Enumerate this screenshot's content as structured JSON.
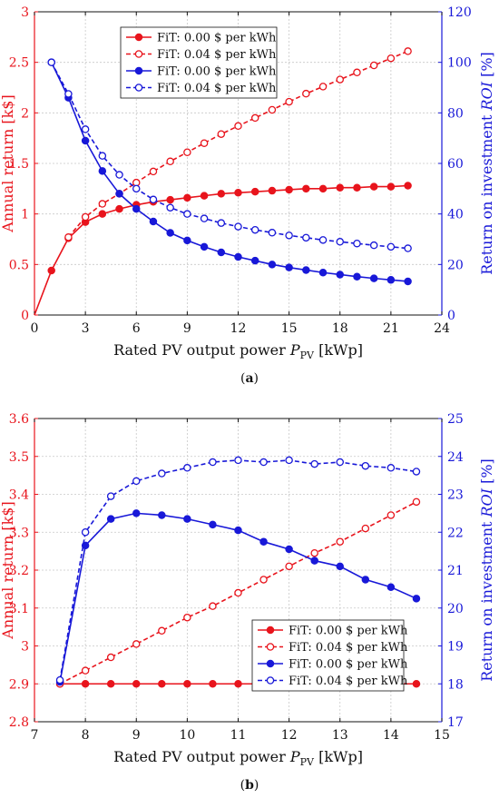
{
  "chart_data": [
    {
      "panel": "(a)",
      "type": "line",
      "xlabel": "Rated PV output power P_PV [kWp]",
      "ylabel_left": "Annual return [k$]",
      "ylabel_right": "Return on investment ROI [%]",
      "xlim": [
        0,
        24
      ],
      "xticks": [
        0,
        3,
        6,
        9,
        12,
        15,
        18,
        21,
        24
      ],
      "ylim_left": [
        0,
        3
      ],
      "yticks_left": [
        0,
        0.5,
        1,
        1.5,
        2,
        2.5,
        3
      ],
      "ylim_right": [
        0,
        120
      ],
      "yticks_right": [
        0,
        20,
        40,
        60,
        80,
        100,
        120
      ],
      "grid": true,
      "legend_position": "top-left",
      "series": [
        {
          "name": "FiT: 0.00 $ per kWh",
          "axis": "left",
          "color": "#e8141c",
          "style": "solid",
          "marker": "filled",
          "x": [
            0,
            1,
            2,
            3,
            4,
            5,
            6,
            7,
            8,
            9,
            10,
            11,
            12,
            13,
            14,
            15,
            16,
            17,
            18,
            19,
            20,
            21,
            22
          ],
          "y": [
            0,
            0.44,
            0.76,
            0.92,
            1.0,
            1.05,
            1.09,
            1.12,
            1.14,
            1.16,
            1.18,
            1.2,
            1.21,
            1.22,
            1.23,
            1.24,
            1.25,
            1.25,
            1.26,
            1.26,
            1.27,
            1.27,
            1.28
          ],
          "marker_from_index": 1
        },
        {
          "name": "FiT: 0.04 $ per kWh",
          "axis": "left",
          "color": "#e8141c",
          "style": "dashed",
          "marker": "open",
          "x": [
            2,
            3,
            4,
            5,
            6,
            7,
            8,
            9,
            10,
            11,
            12,
            13,
            14,
            15,
            16,
            17,
            18,
            19,
            20,
            21,
            22
          ],
          "y": [
            0.77,
            0.97,
            1.1,
            1.2,
            1.31,
            1.42,
            1.52,
            1.61,
            1.7,
            1.79,
            1.87,
            1.95,
            2.03,
            2.11,
            2.19,
            2.26,
            2.33,
            2.4,
            2.47,
            2.54,
            2.61
          ]
        },
        {
          "name": "FiT: 0.00 $ per kWh",
          "axis": "right",
          "color": "#1818d8",
          "style": "solid",
          "marker": "filled",
          "x": [
            1,
            2,
            3,
            4,
            5,
            6,
            7,
            8,
            9,
            10,
            11,
            12,
            13,
            14,
            15,
            16,
            17,
            18,
            19,
            20,
            21,
            22
          ],
          "y": [
            100,
            86,
            69,
            57,
            48,
            42,
            37,
            32.5,
            29.5,
            27,
            24.8,
            23,
            21.5,
            20,
            18.8,
            17.8,
            16.8,
            16,
            15.2,
            14.5,
            13.9,
            13.3
          ]
        },
        {
          "name": "FiT: 0.04 $ per kWh",
          "axis": "right",
          "color": "#1818d8",
          "style": "dashed",
          "marker": "open",
          "x": [
            1,
            2,
            3,
            4,
            5,
            6,
            7,
            8,
            9,
            10,
            11,
            12,
            13,
            14,
            15,
            16,
            17,
            18,
            19,
            20,
            21,
            22
          ],
          "y": [
            100,
            87.5,
            73.5,
            63,
            55.5,
            50,
            45.7,
            42.5,
            40,
            38.2,
            36.4,
            35,
            33.7,
            32.6,
            31.5,
            30.6,
            29.7,
            29,
            28.3,
            27.6,
            27,
            26.4
          ]
        }
      ]
    },
    {
      "panel": "(b)",
      "type": "line",
      "xlabel": "Rated PV output power P_PV [kWp]",
      "ylabel_left": "Annual return [k$]",
      "ylabel_right": "Return on investment ROI [%]",
      "xlim": [
        7,
        15
      ],
      "xticks": [
        7,
        8,
        9,
        10,
        11,
        12,
        13,
        14,
        15
      ],
      "ylim_left": [
        2.8,
        3.6
      ],
      "yticks_left": [
        2.8,
        2.9,
        3,
        3.1,
        3.2,
        3.3,
        3.4,
        3.5,
        3.6
      ],
      "ylim_right": [
        17,
        25
      ],
      "yticks_right": [
        17,
        18,
        19,
        20,
        21,
        22,
        23,
        24,
        25
      ],
      "grid": true,
      "legend_position": "bottom-right",
      "series": [
        {
          "name": "FiT: 0.00 $ per kWh",
          "axis": "left",
          "color": "#e8141c",
          "style": "solid",
          "marker": "filled",
          "x": [
            7.5,
            8,
            8.5,
            9,
            9.5,
            10,
            10.5,
            11,
            11.5,
            12,
            12.5,
            13,
            13.5,
            14,
            14.5
          ],
          "y": [
            2.9,
            2.9,
            2.9,
            2.9,
            2.9,
            2.9,
            2.9,
            2.9,
            2.9,
            2.9,
            2.9,
            2.9,
            2.9,
            2.9,
            2.9
          ]
        },
        {
          "name": "FiT: 0.04 $ per kWh",
          "axis": "left",
          "color": "#e8141c",
          "style": "dashed",
          "marker": "open",
          "x": [
            7.5,
            8,
            8.5,
            9,
            9.5,
            10,
            10.5,
            11,
            11.5,
            12,
            12.5,
            13,
            13.5,
            14,
            14.5
          ],
          "y": [
            2.9,
            2.935,
            2.97,
            3.005,
            3.04,
            3.075,
            3.105,
            3.14,
            3.175,
            3.21,
            3.245,
            3.275,
            3.31,
            3.345,
            3.38
          ]
        },
        {
          "name": "FiT: 0.00 $ per kWh",
          "axis": "right",
          "color": "#1818d8",
          "style": "solid",
          "marker": "filled",
          "x": [
            7.5,
            8,
            8.5,
            9,
            9.5,
            10,
            10.5,
            11,
            11.5,
            12,
            12.5,
            13,
            13.5,
            14,
            14.5
          ],
          "y": [
            18.05,
            21.65,
            22.35,
            22.5,
            22.45,
            22.35,
            22.2,
            22.05,
            21.75,
            21.55,
            21.25,
            21.1,
            20.75,
            20.55,
            20.25
          ]
        },
        {
          "name": "FiT: 0.04 $ per kWh",
          "axis": "right",
          "color": "#1818d8",
          "style": "dashed",
          "marker": "open",
          "x": [
            7.5,
            8,
            8.5,
            9,
            9.5,
            10,
            10.5,
            11,
            11.5,
            12,
            12.5,
            13,
            13.5,
            14,
            14.5
          ],
          "y": [
            18.1,
            22,
            22.95,
            23.35,
            23.55,
            23.7,
            23.85,
            23.9,
            23.85,
            23.9,
            23.8,
            23.85,
            23.75,
            23.7,
            23.6
          ]
        }
      ]
    }
  ]
}
